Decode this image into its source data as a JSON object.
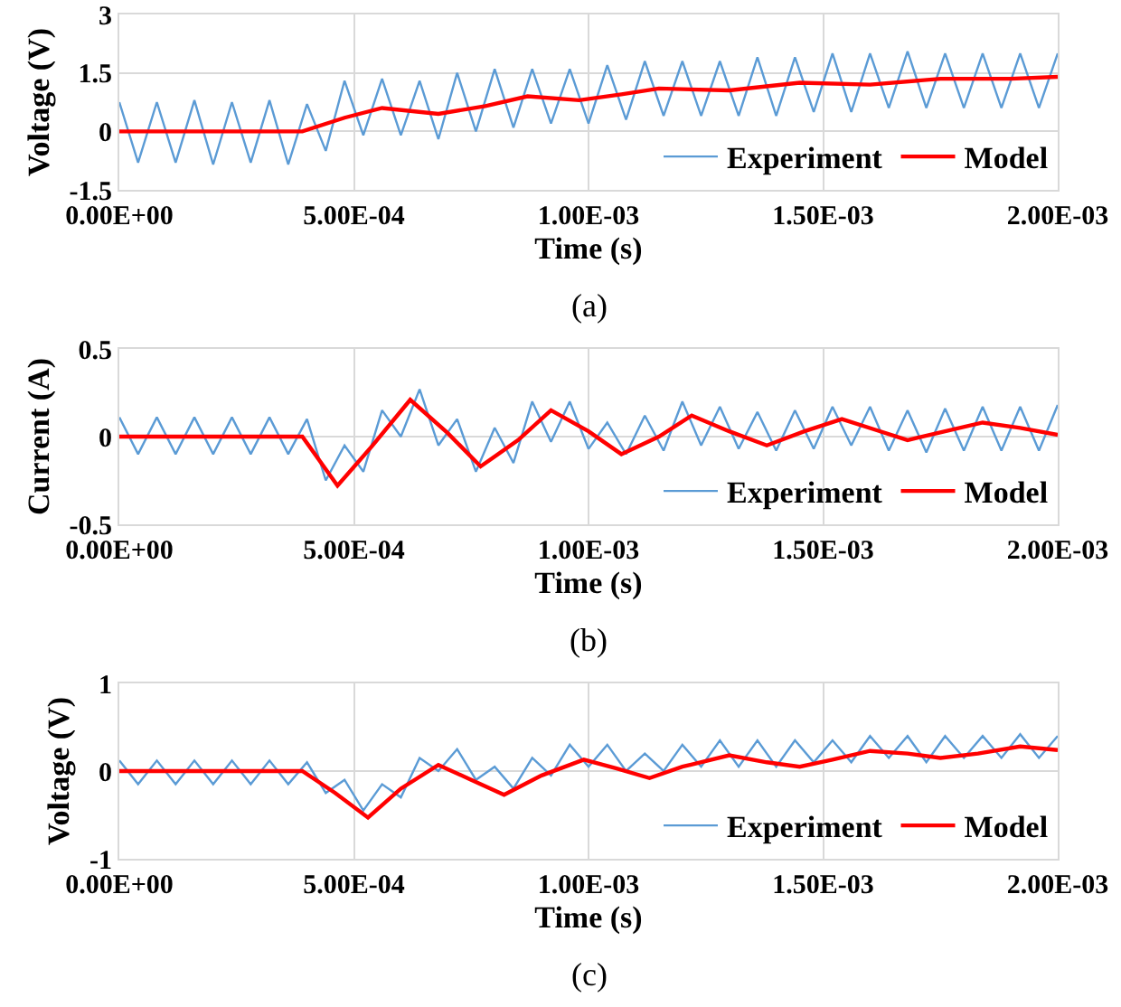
{
  "chart_data": [
    {
      "type": "line",
      "xlabel": "Time (s)",
      "ylabel": "Voltage (V)",
      "annotations": [
        "(a)"
      ],
      "xlim": [
        0,
        0.002
      ],
      "xticks": [
        {
          "value": 0,
          "label": "0.00E+00"
        },
        {
          "value": 0.0005,
          "label": "5.00E-04"
        },
        {
          "value": 0.001,
          "label": "1.00E-03"
        },
        {
          "value": 0.0015,
          "label": "1.50E-03"
        },
        {
          "value": 0.002,
          "label": "2.00E-03"
        }
      ],
      "ylim": [
        -1.5,
        3
      ],
      "yticks": [
        -1.5,
        0,
        1.5,
        3
      ],
      "grid": true,
      "legend": "bottom right",
      "series": [
        {
          "name": "Experiment",
          "color": "#5b9bd5",
          "x": [
            0,
            4e-05,
            8e-05,
            0.00012,
            0.00016,
            0.0002,
            0.00024,
            0.00028,
            0.00032,
            0.00036,
            0.0004,
            0.00044,
            0.00048,
            0.00052,
            0.00056,
            0.0006,
            0.00064,
            0.00068,
            0.00072,
            0.00076,
            0.0008,
            0.00084,
            0.00088,
            0.00092,
            0.00096,
            0.001,
            0.00104,
            0.00108,
            0.00112,
            0.00116,
            0.0012,
            0.00124,
            0.00128,
            0.00132,
            0.00136,
            0.0014,
            0.00144,
            0.00148,
            0.00152,
            0.00156,
            0.0016,
            0.00164,
            0.00168,
            0.00172,
            0.00176,
            0.0018,
            0.00184,
            0.00188,
            0.00192,
            0.00196,
            0.002
          ],
          "values": [
            0.75,
            -0.8,
            0.75,
            -0.8,
            0.8,
            -0.85,
            0.75,
            -0.8,
            0.8,
            -0.85,
            0.7,
            -0.5,
            1.3,
            -0.1,
            1.35,
            -0.1,
            1.3,
            -0.2,
            1.5,
            0,
            1.6,
            0.1,
            1.6,
            0.2,
            1.6,
            0.2,
            1.7,
            0.3,
            1.8,
            0.4,
            1.8,
            0.4,
            1.8,
            0.4,
            1.9,
            0.4,
            1.9,
            0.5,
            2,
            0.5,
            2,
            0.6,
            2.05,
            0.6,
            2,
            0.6,
            2,
            0.6,
            2,
            0.6,
            2
          ]
        },
        {
          "name": "Model",
          "color": "#ff0000",
          "x": [
            0,
            0.0002,
            0.00039,
            0.00048,
            0.00056,
            0.00068,
            0.00078,
            0.00087,
            0.00098,
            0.00107,
            0.00115,
            0.0013,
            0.00145,
            0.0016,
            0.00175,
            0.0019,
            0.002
          ],
          "values": [
            0,
            0,
            0,
            0.35,
            0.6,
            0.45,
            0.65,
            0.9,
            0.8,
            0.95,
            1.1,
            1.05,
            1.25,
            1.2,
            1.35,
            1.35,
            1.4
          ]
        }
      ]
    },
    {
      "type": "line",
      "xlabel": "Time (s)",
      "ylabel": "Current (A)",
      "annotations": [
        "(b)"
      ],
      "xlim": [
        0,
        0.002
      ],
      "xticks": [
        {
          "value": 0,
          "label": "0.00E+00"
        },
        {
          "value": 0.0005,
          "label": "5.00E-04"
        },
        {
          "value": 0.001,
          "label": "1.00E-03"
        },
        {
          "value": 0.0015,
          "label": "1.50E-03"
        },
        {
          "value": 0.002,
          "label": "2.00E-03"
        }
      ],
      "ylim": [
        -0.5,
        0.5
      ],
      "yticks": [
        -0.5,
        0,
        0.5
      ],
      "grid": true,
      "legend": "bottom right",
      "series": [
        {
          "name": "Experiment",
          "color": "#5b9bd5",
          "x": [
            0,
            4e-05,
            8e-05,
            0.00012,
            0.00016,
            0.0002,
            0.00024,
            0.00028,
            0.00032,
            0.00036,
            0.0004,
            0.00044,
            0.00048,
            0.00052,
            0.00056,
            0.0006,
            0.00064,
            0.00068,
            0.00072,
            0.00076,
            0.0008,
            0.00084,
            0.00088,
            0.00092,
            0.00096,
            0.001,
            0.00104,
            0.00108,
            0.00112,
            0.00116,
            0.0012,
            0.00124,
            0.00128,
            0.00132,
            0.00136,
            0.0014,
            0.00144,
            0.00148,
            0.00152,
            0.00156,
            0.0016,
            0.00164,
            0.00168,
            0.00172,
            0.00176,
            0.0018,
            0.00184,
            0.00188,
            0.00192,
            0.00196,
            0.002
          ],
          "values": [
            0.11,
            -0.1,
            0.11,
            -0.1,
            0.11,
            -0.1,
            0.11,
            -0.1,
            0.11,
            -0.1,
            0.1,
            -0.25,
            -0.05,
            -0.2,
            0.15,
            0,
            0.27,
            -0.05,
            0.1,
            -0.2,
            0.05,
            -0.15,
            0.2,
            -0.03,
            0.2,
            -0.07,
            0.08,
            -0.1,
            0.12,
            -0.08,
            0.2,
            -0.05,
            0.17,
            -0.07,
            0.14,
            -0.08,
            0.15,
            -0.07,
            0.17,
            -0.05,
            0.17,
            -0.08,
            0.15,
            -0.09,
            0.16,
            -0.08,
            0.17,
            -0.08,
            0.17,
            -0.08,
            0.18
          ]
        },
        {
          "name": "Model",
          "color": "#ff0000",
          "x": [
            0,
            0.0002,
            0.00039,
            0.000465,
            0.00054,
            0.00062,
            0.0007,
            0.00077,
            0.00085,
            0.00092,
            0.001,
            0.00107,
            0.00115,
            0.00122,
            0.0013,
            0.00138,
            0.00146,
            0.00154,
            0.00161,
            0.00168,
            0.00176,
            0.00184,
            0.00192,
            0.002
          ],
          "values": [
            0,
            0,
            0,
            -0.28,
            -0.05,
            0.21,
            0.02,
            -0.17,
            -0.02,
            0.15,
            0.03,
            -0.1,
            0,
            0.12,
            0.03,
            -0.05,
            0.03,
            0.1,
            0.04,
            -0.02,
            0.03,
            0.08,
            0.05,
            0.01
          ]
        }
      ]
    },
    {
      "type": "line",
      "xlabel": "Time (s)",
      "ylabel": "Voltage (V)",
      "annotations": [
        "(c)"
      ],
      "xlim": [
        0,
        0.002
      ],
      "xticks": [
        {
          "value": 0,
          "label": "0.00E+00"
        },
        {
          "value": 0.0005,
          "label": "5.00E-04"
        },
        {
          "value": 0.001,
          "label": "1.00E-03"
        },
        {
          "value": 0.0015,
          "label": "1.50E-03"
        },
        {
          "value": 0.002,
          "label": "2.00E-03"
        }
      ],
      "ylim": [
        -1,
        1
      ],
      "yticks": [
        -1,
        0,
        1
      ],
      "grid": true,
      "legend": "bottom right",
      "series": [
        {
          "name": "Experiment",
          "color": "#5b9bd5",
          "x": [
            0,
            4e-05,
            8e-05,
            0.00012,
            0.00016,
            0.0002,
            0.00024,
            0.00028,
            0.00032,
            0.00036,
            0.0004,
            0.00044,
            0.00048,
            0.00052,
            0.00056,
            0.0006,
            0.00064,
            0.00068,
            0.00072,
            0.00076,
            0.0008,
            0.00084,
            0.00088,
            0.00092,
            0.00096,
            0.001,
            0.00104,
            0.00108,
            0.00112,
            0.00116,
            0.0012,
            0.00124,
            0.00128,
            0.00132,
            0.00136,
            0.0014,
            0.00144,
            0.00148,
            0.00152,
            0.00156,
            0.0016,
            0.00164,
            0.00168,
            0.00172,
            0.00176,
            0.0018,
            0.00184,
            0.00188,
            0.00192,
            0.00196,
            0.002
          ],
          "values": [
            0.12,
            -0.15,
            0.12,
            -0.15,
            0.12,
            -0.15,
            0.12,
            -0.15,
            0.12,
            -0.15,
            0.1,
            -0.25,
            -0.1,
            -0.45,
            -0.15,
            -0.3,
            0.15,
            0,
            0.25,
            -0.1,
            0.05,
            -0.2,
            0.15,
            -0.05,
            0.3,
            0.05,
            0.3,
            0,
            0.2,
            0,
            0.3,
            0.05,
            0.35,
            0.05,
            0.35,
            0.05,
            0.35,
            0.1,
            0.35,
            0.1,
            0.4,
            0.15,
            0.4,
            0.1,
            0.4,
            0.15,
            0.4,
            0.15,
            0.42,
            0.15,
            0.4
          ]
        },
        {
          "name": "Model",
          "color": "#ff0000",
          "x": [
            0,
            0.0002,
            0.00039,
            0.00046,
            0.00053,
            0.0006,
            0.00068,
            0.00075,
            0.00082,
            0.0009,
            0.00099,
            0.00106,
            0.00113,
            0.0012,
            0.0013,
            0.00138,
            0.00145,
            0.00152,
            0.0016,
            0.00168,
            0.00175,
            0.00183,
            0.00192,
            0.002
          ],
          "values": [
            0,
            0,
            0,
            -0.25,
            -0.53,
            -0.2,
            0.07,
            -0.1,
            -0.27,
            -0.05,
            0.13,
            0.03,
            -0.08,
            0.05,
            0.18,
            0.1,
            0.05,
            0.13,
            0.23,
            0.2,
            0.15,
            0.2,
            0.28,
            0.24
          ]
        }
      ]
    }
  ]
}
